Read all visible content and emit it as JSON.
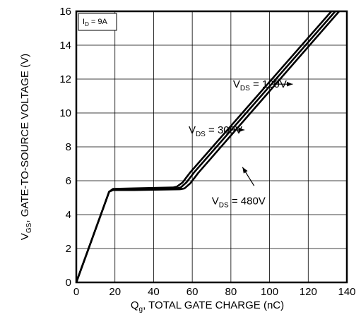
{
  "chart_data": {
    "type": "line",
    "xlabel": {
      "main": "Q",
      "sub": "g",
      "rest": ", TOTAL GATE CHARGE (nC)"
    },
    "ylabel": {
      "main": "V",
      "sub": "GS",
      "rest": ", GATE-TO-SOURCE  VOLTAGE (V)"
    },
    "xlim": [
      0,
      140
    ],
    "ylim": [
      0,
      16
    ],
    "xticks": [
      "0",
      "20",
      "40",
      "60",
      "80",
      "100",
      "120",
      "140"
    ],
    "yticks": [
      "0",
      "2",
      "4",
      "6",
      "8",
      "10",
      "12",
      "14",
      "16"
    ],
    "grid": true,
    "condition": {
      "main": "I",
      "sub": "D",
      "rest": " = 9A"
    },
    "series": [
      {
        "label_main": "V",
        "label_sub": "DS",
        "label_rest": " = 120V",
        "x": [
          0,
          17,
          19,
          30,
          50,
          52,
          55,
          57,
          59,
          132
        ],
        "y": [
          0,
          5.35,
          5.52,
          5.55,
          5.6,
          5.65,
          5.9,
          6.2,
          6.5,
          16
        ]
      },
      {
        "label_main": "V",
        "label_sub": "DS",
        "label_rest": " = 300V",
        "x": [
          0,
          17,
          19,
          30,
          52,
          54,
          57,
          59,
          61,
          134
        ],
        "y": [
          0,
          5.35,
          5.48,
          5.5,
          5.55,
          5.6,
          5.9,
          6.2,
          6.5,
          16
        ]
      },
      {
        "label_main": "V",
        "label_sub": "DS",
        "label_rest": " = 480V",
        "x": [
          0,
          17,
          19,
          30,
          54,
          56,
          59,
          61,
          63,
          136
        ],
        "y": [
          0,
          5.35,
          5.45,
          5.45,
          5.5,
          5.55,
          5.85,
          6.15,
          6.45,
          16
        ]
      }
    ],
    "annotations": [
      {
        "series": 0,
        "text_x": 95,
        "text_y": 11.5,
        "arrow_from": [
          101,
          11.7
        ],
        "arrow_to": [
          112,
          11.7
        ]
      },
      {
        "series": 1,
        "text_x": 72,
        "text_y": 8.8,
        "arrow_from": [
          78,
          9.0
        ],
        "arrow_to": [
          87,
          9.0
        ]
      },
      {
        "series": 2,
        "text_x": 84,
        "text_y": 4.6,
        "arrow_from": [
          92,
          5.7
        ],
        "arrow_to": [
          86,
          6.8
        ]
      }
    ]
  }
}
